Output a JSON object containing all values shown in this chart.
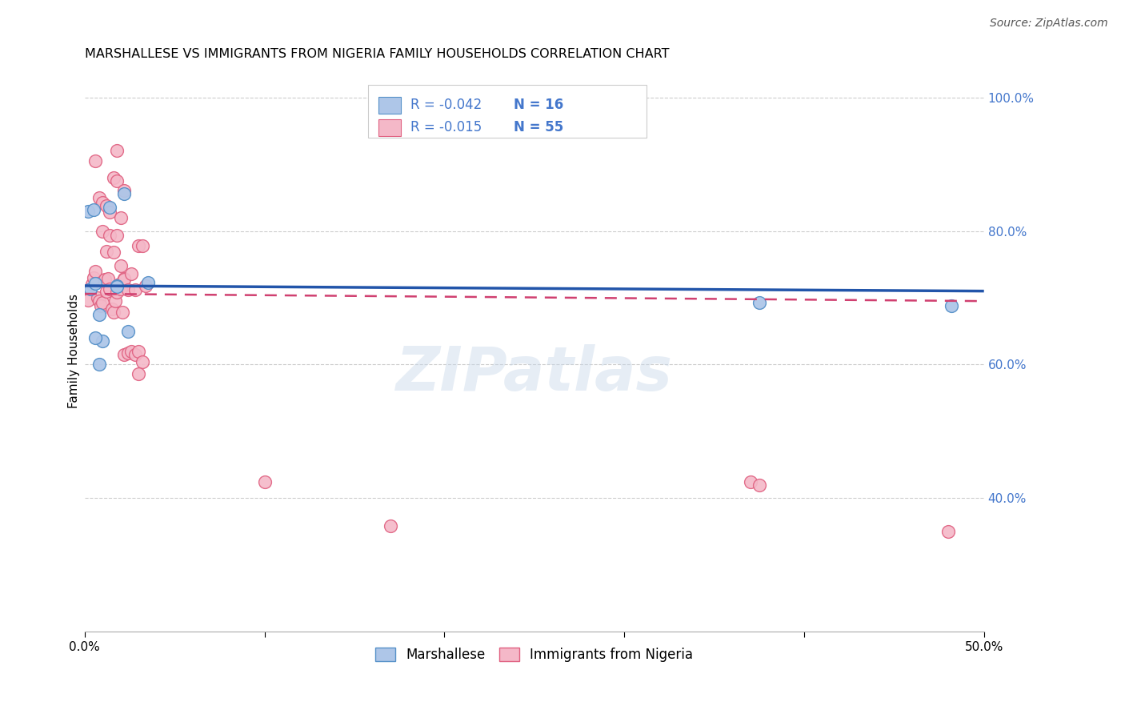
{
  "title": "MARSHALLESE VS IMMIGRANTS FROM NIGERIA FAMILY HOUSEHOLDS CORRELATION CHART",
  "source": "Source: ZipAtlas.com",
  "ylabel": "Family Households",
  "xmin": 0.0,
  "xmax": 0.5,
  "ymin": 0.2,
  "ymax": 1.04,
  "watermark": "ZIPatlas",
  "blue_R": "-0.042",
  "blue_N": "16",
  "pink_R": "-0.015",
  "pink_N": "55",
  "blue_scatter_x": [
    0.002,
    0.005,
    0.014,
    0.022,
    0.003,
    0.006,
    0.008,
    0.018,
    0.018,
    0.01,
    0.024,
    0.035,
    0.006,
    0.482,
    0.375,
    0.008
  ],
  "blue_scatter_y": [
    0.83,
    0.832,
    0.835,
    0.856,
    0.713,
    0.722,
    0.675,
    0.718,
    0.717,
    0.635,
    0.65,
    0.723,
    0.64,
    0.688,
    0.693,
    0.601
  ],
  "pink_scatter_x": [
    0.002,
    0.004,
    0.005,
    0.006,
    0.007,
    0.008,
    0.009,
    0.01,
    0.011,
    0.012,
    0.013,
    0.014,
    0.015,
    0.016,
    0.017,
    0.018,
    0.019,
    0.02,
    0.021,
    0.022,
    0.01,
    0.012,
    0.014,
    0.016,
    0.018,
    0.02,
    0.022,
    0.024,
    0.026,
    0.028,
    0.03,
    0.032,
    0.034,
    0.006,
    0.008,
    0.01,
    0.012,
    0.014,
    0.016,
    0.018,
    0.02,
    0.022,
    0.024,
    0.026,
    0.028,
    0.03,
    0.032,
    0.018,
    0.022,
    0.03,
    0.1,
    0.17,
    0.37,
    0.375,
    0.48
  ],
  "pink_scatter_y": [
    0.696,
    0.72,
    0.73,
    0.74,
    0.7,
    0.695,
    0.688,
    0.693,
    0.727,
    0.71,
    0.729,
    0.713,
    0.683,
    0.679,
    0.695,
    0.708,
    0.72,
    0.713,
    0.678,
    0.729,
    0.8,
    0.77,
    0.793,
    0.768,
    0.794,
    0.748,
    0.727,
    0.712,
    0.736,
    0.712,
    0.778,
    0.778,
    0.718,
    0.905,
    0.85,
    0.843,
    0.838,
    0.828,
    0.88,
    0.875,
    0.82,
    0.615,
    0.617,
    0.62,
    0.615,
    0.62,
    0.604,
    0.921,
    0.86,
    0.586,
    0.424,
    0.358,
    0.424,
    0.42,
    0.35
  ],
  "blue_line_x": [
    0.0,
    0.5
  ],
  "blue_line_y": [
    0.718,
    0.71
  ],
  "pink_line_x": [
    0.0,
    0.5
  ],
  "pink_line_y": [
    0.706,
    0.695
  ],
  "blue_color": "#aec6e8",
  "pink_color": "#f4b8c8",
  "blue_edge_color": "#5590c8",
  "pink_edge_color": "#e06080",
  "blue_line_color": "#2255aa",
  "pink_line_color": "#d04070",
  "legend_color": "#4477cc",
  "title_fontsize": 11.5,
  "source_fontsize": 10,
  "legend_fontsize": 12,
  "axis_label_fontsize": 11,
  "tick_fontsize": 11,
  "watermark_fontsize": 55,
  "watermark_color": "#c8d8ea",
  "watermark_alpha": 0.45,
  "grid_color": "#cccccc",
  "grid_linestyle": "--",
  "background_color": "#ffffff",
  "yticks_right": [
    1.0,
    0.8,
    0.6,
    0.4
  ],
  "yticks_right_labels": [
    "100.0%",
    "80.0%",
    "60.0%",
    "40.0%"
  ],
  "xticks": [
    0.0,
    0.1,
    0.2,
    0.3,
    0.4,
    0.5
  ],
  "xtick_labels": [
    "0.0%",
    "",
    "",
    "",
    "",
    "50.0%"
  ]
}
